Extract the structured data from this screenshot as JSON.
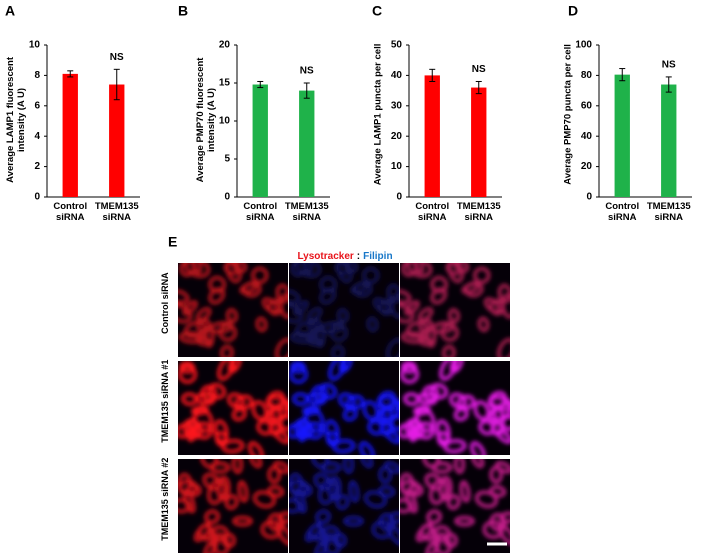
{
  "chart_data": [
    {
      "type": "bar",
      "panel": "A",
      "ylabel": "Average LAMP1 fluorescent intensity (A U)",
      "categories": [
        "Control siRNA",
        "TMEM135 siRNA"
      ],
      "values": [
        8.1,
        7.4
      ],
      "errors": [
        0.2,
        1.0
      ],
      "color": "#ff0000",
      "ylim": [
        0,
        10
      ],
      "yticks": [
        0,
        2,
        4,
        6,
        8,
        10
      ],
      "annotation": "NS"
    },
    {
      "type": "bar",
      "panel": "B",
      "ylabel": "Average PMP70 fluorescent intensity (A U)",
      "categories": [
        "Control siRNA",
        "TMEM135 siRNA"
      ],
      "values": [
        14.8,
        14.0
      ],
      "errors": [
        0.4,
        1.0
      ],
      "color": "#1fb24a",
      "ylim": [
        0,
        20
      ],
      "yticks": [
        0,
        5,
        10,
        15,
        20
      ],
      "annotation": "NS"
    },
    {
      "type": "bar",
      "panel": "C",
      "ylabel": "Average LAMP1 puncta per cell",
      "categories": [
        "Control siRNA",
        "TMEM135 siRNA"
      ],
      "values": [
        40,
        36
      ],
      "errors": [
        2,
        2
      ],
      "color": "#ff0000",
      "ylim": [
        0,
        50
      ],
      "yticks": [
        0,
        10,
        20,
        30,
        40,
        50
      ],
      "annotation": "NS"
    },
    {
      "type": "bar",
      "panel": "D",
      "ylabel": "Average PMP70 puncta per cell",
      "categories": [
        "Control siRNA",
        "TMEM135 siRNA"
      ],
      "values": [
        80.5,
        74
      ],
      "errors": [
        4,
        5
      ],
      "color": "#1fb24a",
      "ylim": [
        0,
        100
      ],
      "yticks": [
        0,
        20,
        40,
        60,
        80,
        100
      ],
      "annotation": "NS"
    }
  ],
  "image_panel": {
    "label": "E",
    "legend": {
      "red": "Lysotracker",
      "separator": ":",
      "blue": "Filipin"
    },
    "rows": [
      "Control siRNA",
      "TMEM135 siRNA #1",
      "TMEM135 siRNA #2"
    ]
  }
}
